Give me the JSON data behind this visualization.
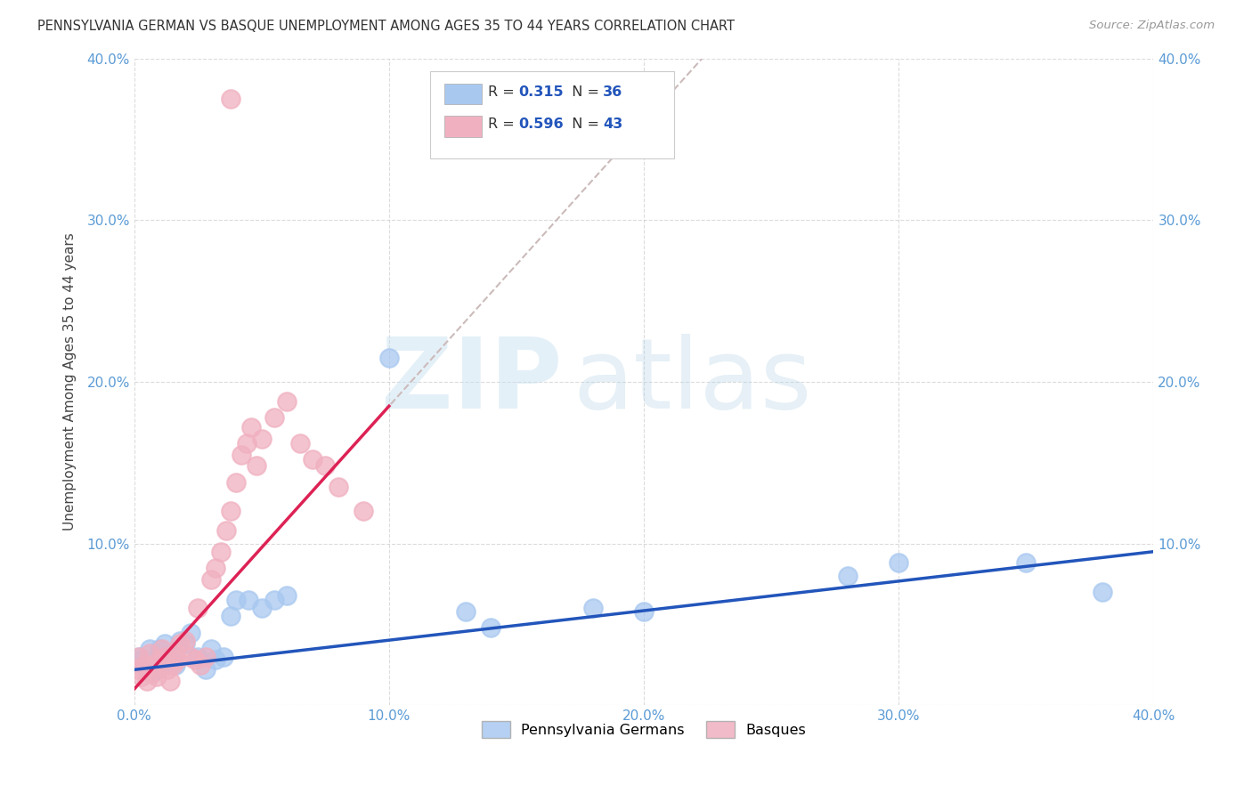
{
  "title": "PENNSYLVANIA GERMAN VS BASQUE UNEMPLOYMENT AMONG AGES 35 TO 44 YEARS CORRELATION CHART",
  "source": "Source: ZipAtlas.com",
  "ylabel": "Unemployment Among Ages 35 to 44 years",
  "xlim": [
    0.0,
    0.4
  ],
  "ylim": [
    0.0,
    0.4
  ],
  "xticks": [
    0.0,
    0.1,
    0.2,
    0.3,
    0.4
  ],
  "yticks": [
    0.0,
    0.1,
    0.2,
    0.3,
    0.4
  ],
  "xtick_labels": [
    "0.0%",
    "10.0%",
    "20.0%",
    "30.0%",
    "40.0%"
  ],
  "ytick_labels": [
    "",
    "10.0%",
    "20.0%",
    "30.0%",
    "40.0%"
  ],
  "background_color": "#ffffff",
  "grid_color": "#cccccc",
  "blue_scatter_color": "#a8c8f0",
  "pink_scatter_color": "#f0b0c0",
  "blue_line_color": "#2255bb",
  "pink_line_color": "#dd2255",
  "dash_line_color": "#ccbbbb",
  "legend_R1": "0.315",
  "legend_N1": "36",
  "legend_R2": "0.596",
  "legend_N2": "43",
  "legend_label1": "Pennsylvania Germans",
  "legend_label2": "Basques",
  "blue_points_x": [
    0.002,
    0.003,
    0.004,
    0.005,
    0.006,
    0.007,
    0.008,
    0.009,
    0.01,
    0.012,
    0.013,
    0.015,
    0.016,
    0.018,
    0.02,
    0.022,
    0.025,
    0.028,
    0.03,
    0.032,
    0.035,
    0.038,
    0.04,
    0.045,
    0.05,
    0.055,
    0.06,
    0.1,
    0.13,
    0.14,
    0.18,
    0.2,
    0.28,
    0.3,
    0.35,
    0.38
  ],
  "blue_points_y": [
    0.03,
    0.028,
    0.025,
    0.022,
    0.035,
    0.02,
    0.028,
    0.022,
    0.035,
    0.038,
    0.03,
    0.032,
    0.025,
    0.04,
    0.038,
    0.045,
    0.03,
    0.022,
    0.035,
    0.028,
    0.03,
    0.055,
    0.065,
    0.065,
    0.06,
    0.065,
    0.068,
    0.215,
    0.058,
    0.048,
    0.06,
    0.058,
    0.08,
    0.088,
    0.088,
    0.07
  ],
  "pink_points_x": [
    0.001,
    0.002,
    0.003,
    0.004,
    0.005,
    0.006,
    0.007,
    0.008,
    0.009,
    0.01,
    0.011,
    0.012,
    0.013,
    0.014,
    0.015,
    0.016,
    0.017,
    0.018,
    0.02,
    0.022,
    0.024,
    0.025,
    0.026,
    0.028,
    0.03,
    0.032,
    0.034,
    0.036,
    0.038,
    0.04,
    0.042,
    0.044,
    0.046,
    0.048,
    0.05,
    0.055,
    0.06,
    0.065,
    0.07,
    0.075,
    0.08,
    0.09,
    0.038
  ],
  "pink_points_y": [
    0.022,
    0.03,
    0.018,
    0.025,
    0.015,
    0.032,
    0.02,
    0.025,
    0.018,
    0.028,
    0.035,
    0.03,
    0.022,
    0.015,
    0.025,
    0.032,
    0.028,
    0.038,
    0.04,
    0.03,
    0.028,
    0.06,
    0.025,
    0.03,
    0.078,
    0.085,
    0.095,
    0.108,
    0.12,
    0.138,
    0.155,
    0.162,
    0.172,
    0.148,
    0.165,
    0.178,
    0.188,
    0.162,
    0.152,
    0.148,
    0.135,
    0.12,
    0.375
  ],
  "pink_line_x_start": 0.0,
  "pink_line_x_end": 0.1,
  "pink_line_y_start": 0.01,
  "pink_line_y_end": 0.185,
  "blue_line_x_start": 0.0,
  "blue_line_x_end": 0.4,
  "blue_line_y_start": 0.022,
  "blue_line_y_end": 0.095
}
